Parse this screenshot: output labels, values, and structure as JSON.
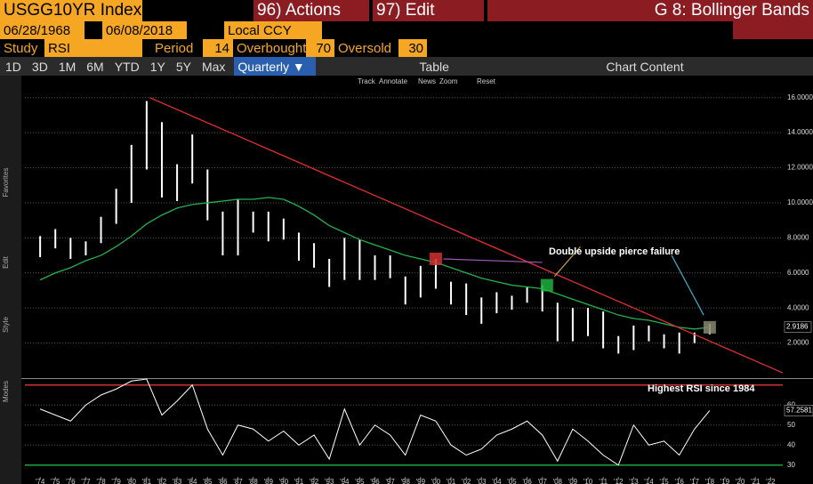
{
  "header": {
    "ticker": "USGG10YR Index",
    "actions": "96) Actions",
    "edit": "97) Edit",
    "function": "G 8: Bollinger Bands"
  },
  "range": {
    "start": "06/28/1968",
    "end": "06/08/2018",
    "currency": "Local CCY"
  },
  "study": {
    "label": "Study",
    "name": "RSI",
    "period_label": "Period",
    "period": 14,
    "overbought_label": "Overbought",
    "overbought": 70,
    "oversold_label": "Oversold",
    "oversold": 30
  },
  "toolbar": {
    "periods": [
      "1D",
      "3D",
      "1M",
      "6M",
      "YTD",
      "1Y",
      "5Y",
      "Max"
    ],
    "frequency": "Quarterly",
    "table": "Table",
    "chart_content": "Chart Content"
  },
  "chart_tools": [
    "Track",
    "Annotate",
    "News",
    "Zoom",
    "Reset"
  ],
  "side_labels": [
    "Favorites",
    "Edit",
    "Style",
    "Modes"
  ],
  "chart_data": [
    {
      "type": "ohlc",
      "color": "#ffffff",
      "x": [
        1974,
        1975,
        1976,
        1977,
        1978,
        1979,
        1980,
        1981,
        1982,
        1983,
        1984,
        1985,
        1986,
        1987,
        1988,
        1989,
        1990,
        1991,
        1992,
        1993,
        1994,
        1995,
        1996,
        1997,
        1998,
        1999,
        2000,
        2001,
        2002,
        2003,
        2004,
        2005,
        2006,
        2007,
        2008,
        2009,
        2010,
        2011,
        2012,
        2013,
        2014,
        2015,
        2016,
        2017,
        2018
      ],
      "low": [
        6.9,
        7.4,
        6.8,
        7.0,
        7.7,
        8.8,
        10.0,
        11.9,
        10.3,
        10.1,
        11.1,
        9.0,
        7.0,
        7.0,
        8.3,
        7.8,
        7.9,
        6.7,
        6.3,
        5.2,
        5.6,
        5.6,
        5.6,
        5.7,
        4.2,
        4.6,
        5.1,
        4.2,
        3.6,
        3.1,
        3.7,
        3.9,
        4.3,
        3.8,
        2.1,
        2.1,
        2.4,
        1.7,
        1.4,
        1.6,
        2.1,
        1.7,
        1.4,
        2.0,
        2.5
      ],
      "high": [
        8.1,
        8.5,
        8.0,
        7.8,
        9.2,
        10.8,
        13.3,
        15.8,
        14.6,
        12.2,
        13.9,
        11.9,
        9.5,
        10.2,
        9.5,
        9.5,
        9.1,
        8.3,
        7.7,
        6.8,
        8.0,
        7.9,
        7.0,
        7.0,
        5.8,
        6.4,
        6.8,
        5.5,
        5.4,
        4.6,
        4.9,
        4.7,
        5.2,
        5.3,
        4.3,
        4.0,
        4.0,
        3.8,
        2.4,
        3.0,
        3.0,
        2.5,
        2.6,
        2.6,
        3.1
      ],
      "moving_average": {
        "color": "#22b24c",
        "values": [
          5.6,
          6.0,
          6.3,
          6.7,
          7.0,
          7.5,
          8.1,
          8.8,
          9.3,
          9.7,
          9.9,
          10.0,
          10.1,
          10.2,
          10.2,
          10.3,
          10.2,
          9.8,
          9.3,
          8.7,
          8.3,
          7.9,
          7.6,
          7.3,
          7.0,
          6.8,
          6.6,
          6.3,
          6.0,
          5.7,
          5.5,
          5.3,
          5.2,
          5.1,
          4.8,
          4.5,
          4.2,
          3.9,
          3.6,
          3.4,
          3.3,
          3.1,
          2.9,
          2.8,
          2.9
        ]
      },
      "trendline": {
        "color": "#e0302e",
        "x": [
          1981.2,
          2022.8
        ],
        "values": [
          16,
          0.3
        ]
      },
      "markers": [
        {
          "x": 2000,
          "value": 6.8,
          "color": "#d03030"
        },
        {
          "x": 2007.3,
          "value": 5.3,
          "color": "#20b040"
        },
        {
          "x": 2018,
          "value": 2.9,
          "color": "#8a8a70"
        }
      ],
      "annotation": "Double upside pierce failure",
      "last_value": 2.9186,
      "xlim": [
        1973,
        2022.8
      ],
      "ylim": [
        0,
        17
      ],
      "grid": true,
      "yticks": [
        {
          "value": 2,
          "label": "2.0000"
        },
        {
          "value": 4,
          "label": "4.0000"
        },
        {
          "value": 6,
          "label": "6.0000"
        },
        {
          "value": 8,
          "label": "8.0000"
        },
        {
          "value": 10,
          "label": "10.0000"
        },
        {
          "value": 12,
          "label": "12.0000"
        },
        {
          "value": 14,
          "label": "14.0000"
        },
        {
          "value": 16,
          "label": "16.0000"
        }
      ]
    },
    {
      "type": "line",
      "color": "#ffffff",
      "x": [
        1974,
        1975,
        1976,
        1977,
        1978,
        1979,
        1980,
        1981,
        1982,
        1983,
        1984,
        1985,
        1986,
        1987,
        1988,
        1989,
        1990,
        1991,
        1992,
        1993,
        1994,
        1995,
        1996,
        1997,
        1998,
        1999,
        2000,
        2001,
        2002,
        2003,
        2004,
        2005,
        2006,
        2007,
        2008,
        2009,
        2010,
        2011,
        2012,
        2013,
        2014,
        2015,
        2016,
        2017,
        2018
      ],
      "values": [
        58,
        55,
        52,
        60,
        65,
        68,
        72,
        73,
        55,
        62,
        70,
        48,
        35,
        50,
        48,
        42,
        47,
        40,
        45,
        33,
        58,
        40,
        50,
        45,
        35,
        55,
        52,
        40,
        35,
        38,
        45,
        48,
        52,
        45,
        32,
        48,
        42,
        35,
        30,
        50,
        40,
        42,
        35,
        48,
        57.2581
      ],
      "annotation": "Highest RSI since 1984",
      "xlim": [
        1973,
        2022.8
      ],
      "ylim": [
        25,
        73
      ],
      "yticks": [
        30,
        40,
        50,
        60
      ],
      "xticks": [
        {
          "value": 1974,
          "label": "'74"
        },
        {
          "value": 1975,
          "label": "'75"
        },
        {
          "value": 1976,
          "label": "'76"
        },
        {
          "value": 1977,
          "label": "'77"
        },
        {
          "value": 1978,
          "label": "'78"
        },
        {
          "value": 1979,
          "label": "'79"
        },
        {
          "value": 1980,
          "label": "'80"
        },
        {
          "value": 1981,
          "label": "'81"
        },
        {
          "value": 1982,
          "label": "'82"
        },
        {
          "value": 1983,
          "label": "'83"
        },
        {
          "value": 1984,
          "label": "'84"
        },
        {
          "value": 1985,
          "label": "'85"
        },
        {
          "value": 1986,
          "label": "'86"
        },
        {
          "value": 1987,
          "label": "'87"
        },
        {
          "value": 1988,
          "label": "'88"
        },
        {
          "value": 1989,
          "label": "'89"
        },
        {
          "value": 1990,
          "label": "'90"
        },
        {
          "value": 1991,
          "label": "'91"
        },
        {
          "value": 1992,
          "label": "'92"
        },
        {
          "value": 1993,
          "label": "'93"
        },
        {
          "value": 1994,
          "label": "'94"
        },
        {
          "value": 1995,
          "label": "'95"
        },
        {
          "value": 1996,
          "label": "'96"
        },
        {
          "value": 1997,
          "label": "'97"
        },
        {
          "value": 1998,
          "label": "'98"
        },
        {
          "value": 1999,
          "label": "'99"
        },
        {
          "value": 2000,
          "label": "'00"
        },
        {
          "value": 2001,
          "label": "'01"
        },
        {
          "value": 2002,
          "label": "'02"
        },
        {
          "value": 2003,
          "label": "'03"
        },
        {
          "value": 2004,
          "label": "'04"
        },
        {
          "value": 2005,
          "label": "'05"
        },
        {
          "value": 2006,
          "label": "'06"
        },
        {
          "value": 2007,
          "label": "'07"
        },
        {
          "value": 2008,
          "label": "'08"
        },
        {
          "value": 2009,
          "label": "'09"
        },
        {
          "value": 2010,
          "label": "'10"
        },
        {
          "value": 2011,
          "label": "'11"
        },
        {
          "value": 2012,
          "label": "'12"
        },
        {
          "value": 2013,
          "label": "'13"
        },
        {
          "value": 2014,
          "label": "'14"
        },
        {
          "value": 2015,
          "label": "'15"
        },
        {
          "value": 2016,
          "label": "'16"
        },
        {
          "value": 2017,
          "label": "'17"
        },
        {
          "value": 2018,
          "label": "'18"
        },
        {
          "value": 2019,
          "label": "'19"
        },
        {
          "value": 2020,
          "label": "'20"
        },
        {
          "value": 2021,
          "label": "'21"
        },
        {
          "value": 2022,
          "label": "'22"
        }
      ]
    }
  ]
}
